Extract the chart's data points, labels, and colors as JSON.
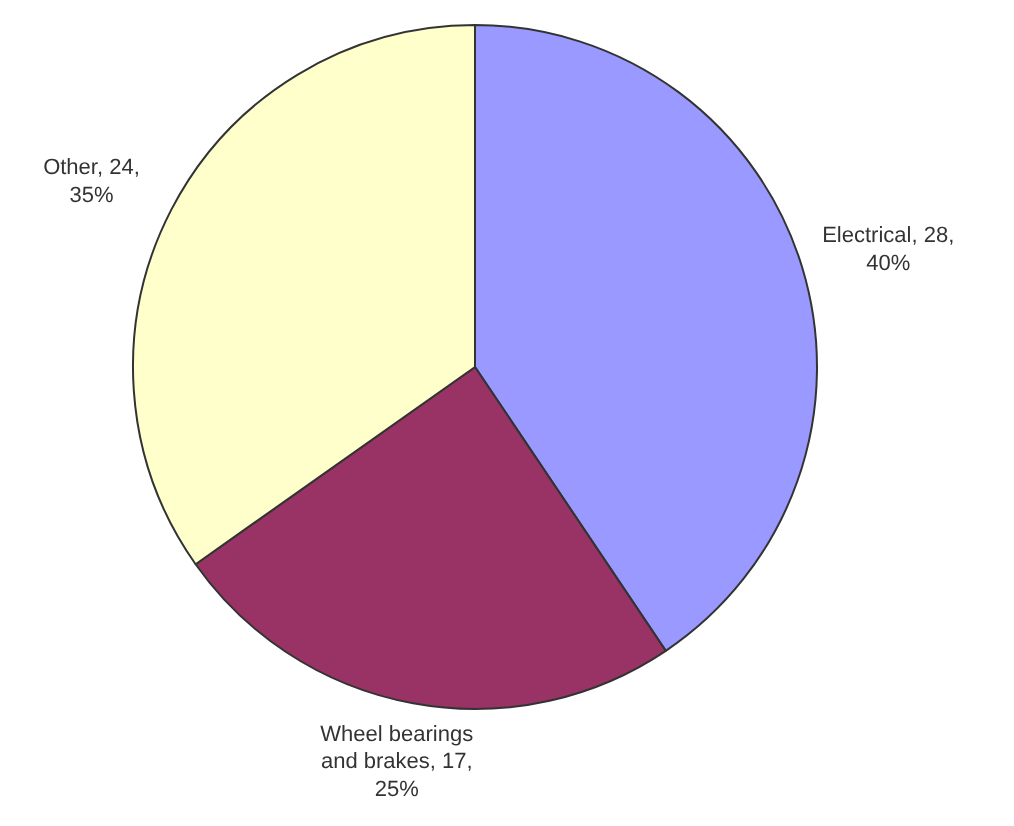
{
  "chart_data": {
    "type": "pie",
    "categories": [
      "Electrical",
      "Wheel bearings\nand brakes",
      "Other"
    ],
    "values": [
      28,
      17,
      24
    ],
    "colors": [
      "#9999ff",
      "#993366",
      "#ffffcc"
    ],
    "value_labels": [
      "28,\n40%",
      "17,\n25%",
      "24,\n35%"
    ]
  }
}
